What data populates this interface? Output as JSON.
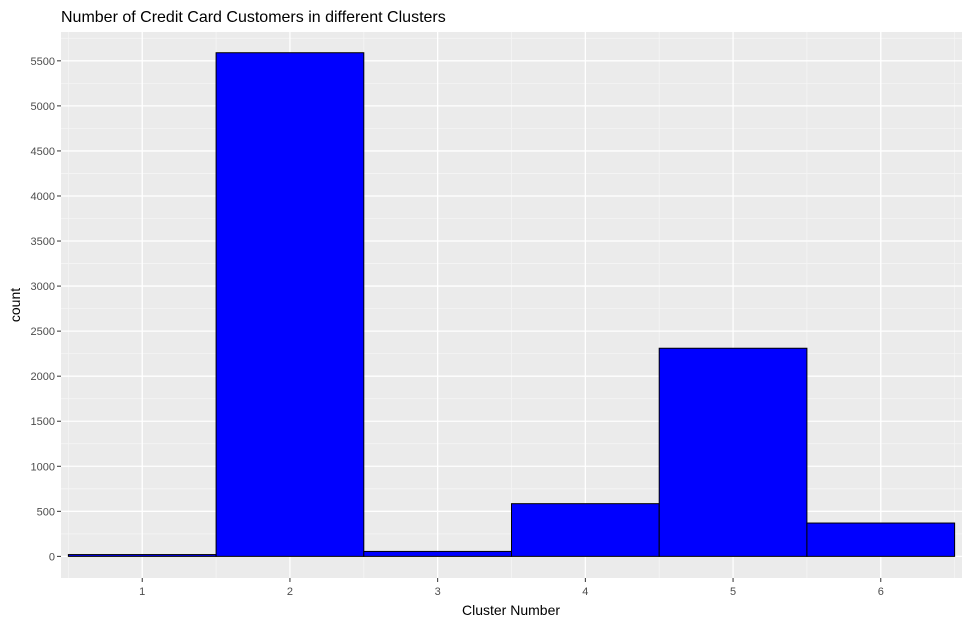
{
  "chart_data": {
    "type": "bar",
    "title": "Number of Credit Card Customers in different Clusters",
    "xlabel": "Cluster Number",
    "ylabel": "count",
    "categories": [
      "1",
      "2",
      "3",
      "4",
      "5",
      "6"
    ],
    "values": [
      20,
      5590,
      55,
      585,
      2310,
      370
    ],
    "xlim": [
      0.45,
      6.55
    ],
    "ylim": [
      -240,
      5820
    ],
    "y_ticks": [
      0,
      500,
      1000,
      1500,
      2000,
      2500,
      3000,
      3500,
      4000,
      4500,
      5000,
      5500
    ],
    "y_tick_labels": [
      "0",
      "500",
      "1000",
      "1500",
      "2000",
      "2500",
      "3000",
      "3500",
      "4000",
      "4500",
      "5000",
      "5500"
    ],
    "x_ticks": [
      1,
      2,
      3,
      4,
      5,
      6
    ],
    "x_tick_labels": [
      "1",
      "2",
      "3",
      "4",
      "5",
      "6"
    ],
    "grid": true,
    "legend": "none",
    "colors": {
      "bar_fill": "#0000FF",
      "bar_stroke": "#000000",
      "panel_background": "#EBEBEB",
      "grid_major": "#FFFFFF",
      "grid_minor": "#F5F5F5",
      "tick": "#333333"
    }
  }
}
